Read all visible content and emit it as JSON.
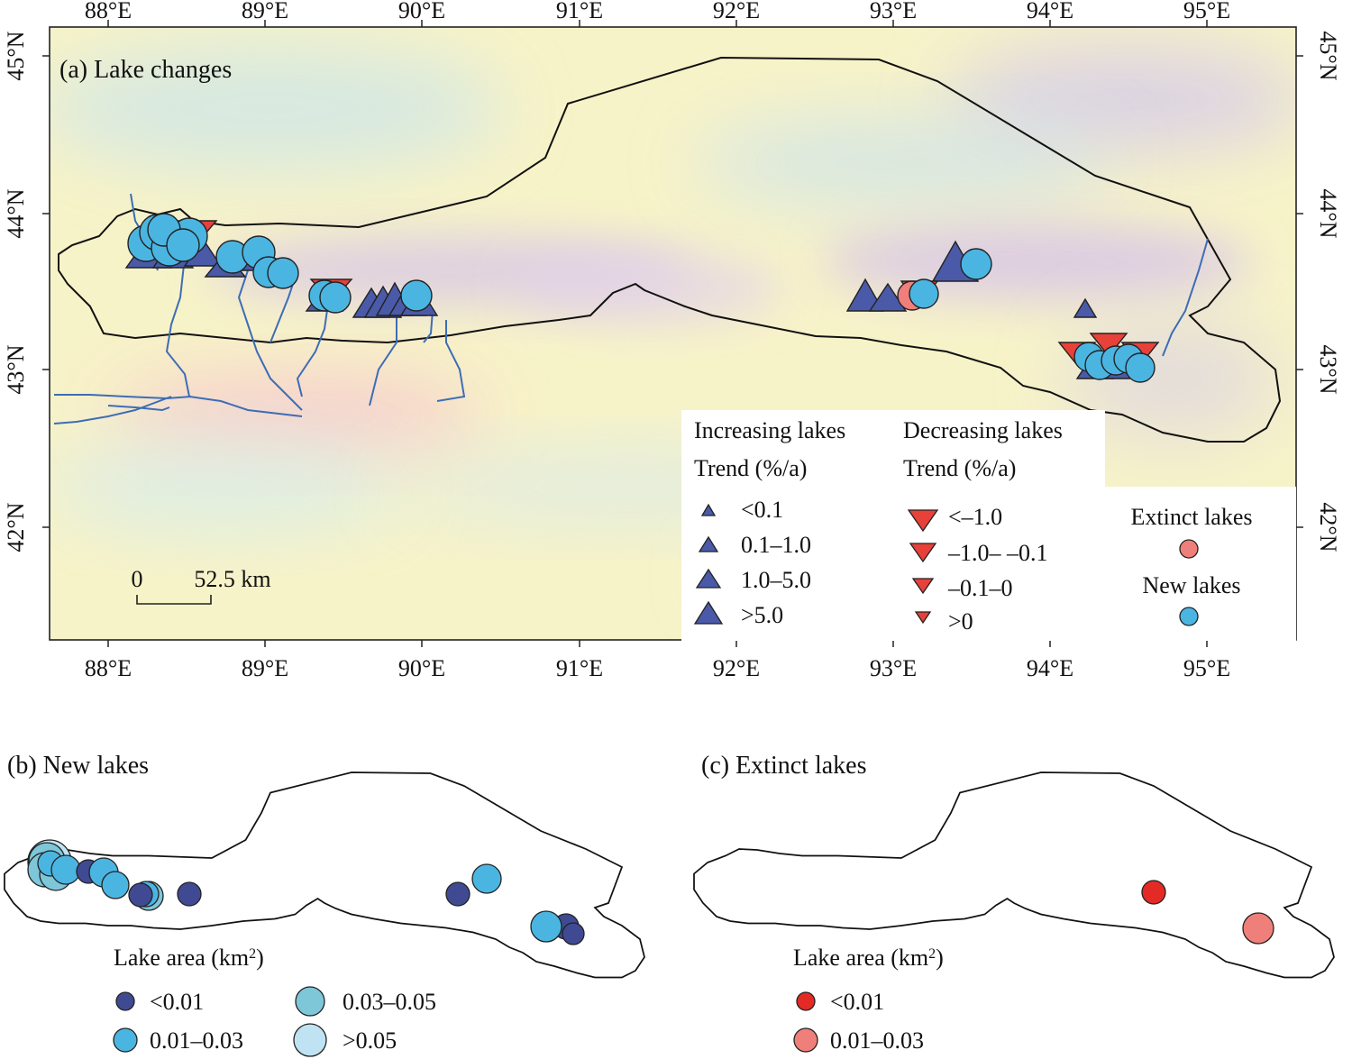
{
  "panels": {
    "a": {
      "title": "(a) Lake changes"
    },
    "b": {
      "title": "(b) New lakes"
    },
    "c": {
      "title": "(c) Extinct lakes"
    }
  },
  "axes": {
    "lon_ticks": [
      "88°E",
      "89°E",
      "90°E",
      "91°E",
      "92°E",
      "93°E",
      "94°E",
      "95°E"
    ],
    "lat_ticks": [
      "45°N",
      "44°N",
      "43°N",
      "42°N"
    ]
  },
  "scale_bar": {
    "zero": "0",
    "label": "52.5 km"
  },
  "legend": {
    "increasing": {
      "title": "Increasing lakes",
      "subtitle": "Trend (%/a)",
      "items": [
        "<0.1",
        "0.1–1.0",
        "1.0–5.0",
        ">5.0"
      ],
      "color": "#4a5aa8"
    },
    "decreasing": {
      "title": "Decreasing lakes",
      "subtitle": "Trend (%/a)",
      "items": [
        "<–1.0",
        "–1.0– –0.1",
        "–0.1–0",
        ">0"
      ],
      "color": "#e8413a"
    },
    "extinct": {
      "label": "Extinct lakes",
      "color": "#ef7f7a"
    },
    "new": {
      "label": "New lakes",
      "color": "#4bb5e2"
    }
  },
  "panel_b_legend": {
    "title": "Lake area (km",
    "title_sup": "2",
    "title_end": ")",
    "items": [
      "<0.01",
      "0.03–0.05",
      "0.01–0.03",
      ">0.05"
    ],
    "colors": [
      "#3f4a93",
      "#7ec7d9",
      "#4bb5e2",
      "#bfe3f2"
    ]
  },
  "panel_c_legend": {
    "title": "Lake area (km",
    "title_sup": "2",
    "title_end": ")",
    "items": [
      "<0.01",
      "0.01–0.03"
    ],
    "colors": [
      "#e32a25",
      "#ef7f7a"
    ]
  }
}
